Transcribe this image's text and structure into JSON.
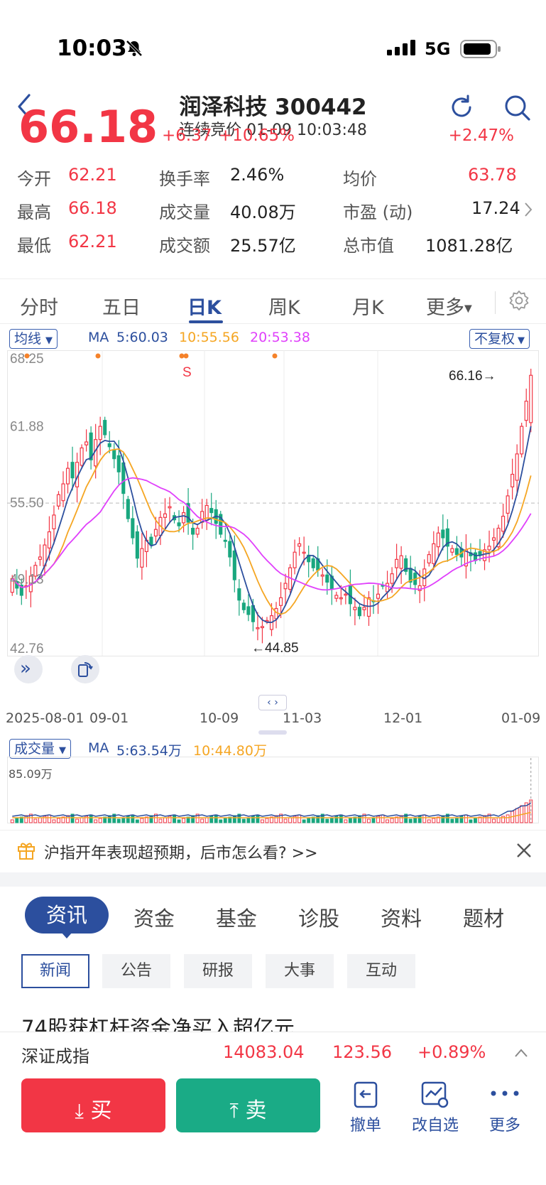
{
  "status_bar": {
    "time": "10:03",
    "network": "5G"
  },
  "header": {
    "title": "润泽科技 300442",
    "subtitle": "连续竞价 01-09 10:03:48",
    "price_big": "66.18",
    "change": "+6.37",
    "change_pct": "+10.65%",
    "right_pct": "+2.47%"
  },
  "stats": {
    "open_label": "今开",
    "open": "62.21",
    "high_label": "最高",
    "high": "66.18",
    "low_label": "最低",
    "low": "62.21",
    "turnover_rate_label": "换手率",
    "turnover_rate": "2.46%",
    "volume_label": "成交量",
    "volume": "40.08万",
    "amount_label": "成交额",
    "amount": "25.57亿",
    "avg_label": "均价",
    "avg": "63.78",
    "pe_label": "市盈 (动)",
    "pe": "17.24",
    "mcap_label": "总市值",
    "mcap": "1081.28亿"
  },
  "ktabs": [
    "分时",
    "五日",
    "日K",
    "周K",
    "月K",
    "更多"
  ],
  "ma_bar": {
    "select_label": "均线",
    "ma_label": "MA",
    "ma5": "5:60.03",
    "ma10": "10:55.56",
    "ma20": "20:53.38",
    "adjust_label": "不复权"
  },
  "chart_data": {
    "type": "candlestick",
    "y_ticks": [
      "68.25",
      "61.88",
      "55.50",
      "49.13",
      "42.76"
    ],
    "ylim": [
      42.76,
      68.25
    ],
    "x_ticks": [
      "2025-08-01",
      "09-01",
      "10-09",
      "11-03",
      "12-01",
      "01-09"
    ],
    "annotations": {
      "last": "66.16",
      "min": "44.85",
      "marker": "S"
    },
    "colors": {
      "up": "#f23645",
      "down": "#19a77f",
      "ma5": "#2c4f9e",
      "ma10": "#f5a623",
      "ma20": "#e040fb"
    },
    "closes": [
      49.2,
      48.4,
      47.8,
      48.6,
      49.4,
      50.3,
      51.0,
      52.0,
      53.1,
      54.5,
      56.2,
      57.1,
      58.4,
      57.6,
      58.9,
      60.1,
      60.6,
      59.1,
      60.8,
      61.9,
      61.2,
      60.2,
      59.2,
      58.1,
      56.3,
      54.2,
      52.6,
      50.9,
      51.7,
      52.4,
      52.0,
      53.3,
      54.3,
      54.6,
      55.2,
      54.1,
      53.6,
      54.7,
      53.9,
      52.9,
      53.4,
      54.8,
      55.3,
      54.7,
      53.8,
      52.9,
      52.3,
      51.0,
      49.1,
      47.4,
      46.6,
      46.2,
      45.6,
      45.1,
      45.2,
      45.7,
      46.1,
      46.7,
      47.6,
      48.8,
      50.1,
      51.4,
      52.1,
      51.4,
      50.6,
      50.1,
      49.9,
      49.5,
      48.9,
      48.3,
      47.8,
      47.6,
      47.9,
      47.1,
      46.8,
      46.1,
      46.8,
      47.6,
      47.3,
      47.9,
      48.6,
      48.8,
      49.6,
      50.8,
      51.1,
      49.8,
      48.9,
      48.7,
      48.6,
      50.0,
      51.2,
      52.1,
      53.0,
      52.6,
      51.9,
      51.7,
      51.2,
      51.0,
      51.6,
      51.1,
      50.7,
      51.2,
      51.6,
      51.9,
      52.6,
      53.4,
      54.4,
      56.1,
      57.9,
      59.6,
      61.9,
      64.0,
      66.16
    ],
    "volume": {
      "ma5": "5:63.54万",
      "ma10": "10:44.80万",
      "max_label": "85.09万"
    }
  },
  "volume_bar": {
    "select_label": "成交量",
    "ma_label": "MA"
  },
  "banner": {
    "text": "沪指开年表现超预期，后市怎么看? >>"
  },
  "news_tabs": [
    "资讯",
    "资金",
    "基金",
    "诊股",
    "资料",
    "题材"
  ],
  "news_subtabs": [
    "新闻",
    "公告",
    "研报",
    "大事",
    "互动"
  ],
  "headline": "74股获杠杆资金净买入超亿元",
  "index": {
    "name": "深证成指",
    "value": "14083.04",
    "change": "123.56",
    "pct": "+0.89%"
  },
  "actions": {
    "buy": "买",
    "sell": "卖",
    "cancel": "撤单",
    "watch": "改自选",
    "more": "更多"
  }
}
